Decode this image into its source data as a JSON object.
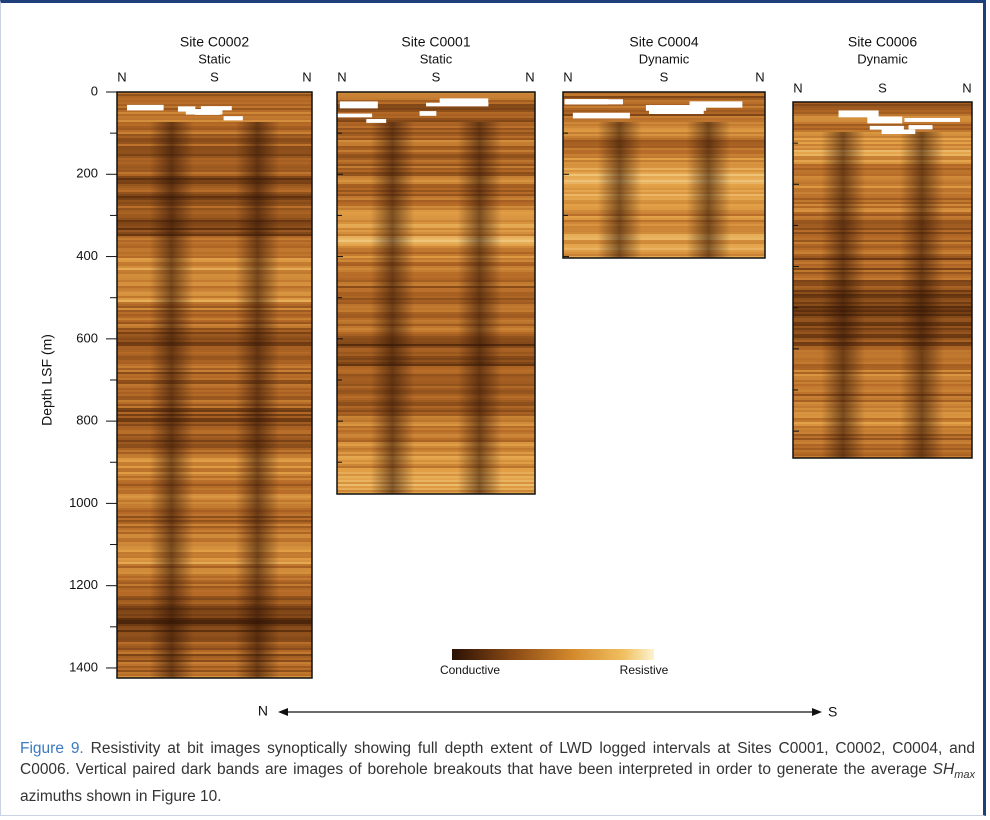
{
  "figure": {
    "panels": [
      {
        "site": "Site C0002",
        "mode": "Static",
        "azimuths": [
          "N",
          "S",
          "N"
        ]
      },
      {
        "site": "Site C0001",
        "mode": "Static",
        "azimuths": [
          "N",
          "S",
          "N"
        ]
      },
      {
        "site": "Site C0004",
        "mode": "Dynamic",
        "azimuths": [
          "N",
          "S",
          "N"
        ]
      },
      {
        "site": "Site C0006",
        "mode": "Dynamic",
        "azimuths": [
          "N",
          "S",
          "N"
        ]
      }
    ],
    "depth_axis": {
      "label": "Depth LSF (m)",
      "ticks": [
        0,
        200,
        400,
        600,
        800,
        1000,
        1200,
        1400
      ]
    },
    "colorbar": {
      "low": "Conductive",
      "high": "Resistive"
    },
    "direction": {
      "left": "N",
      "right": "S"
    },
    "caption": {
      "label": "Figure 9.",
      "text_before": " Resistivity at bit images synoptically showing full depth extent of LWD logged intervals at Sites C0001, C0002, C0004, and C0006. Vertical paired dark bands are images of borehole breakouts that have been interpreted in order to generate the average ",
      "sh": "SH",
      "sub": "max",
      "text_after": " azimuths shown in Figure 10."
    }
  }
}
